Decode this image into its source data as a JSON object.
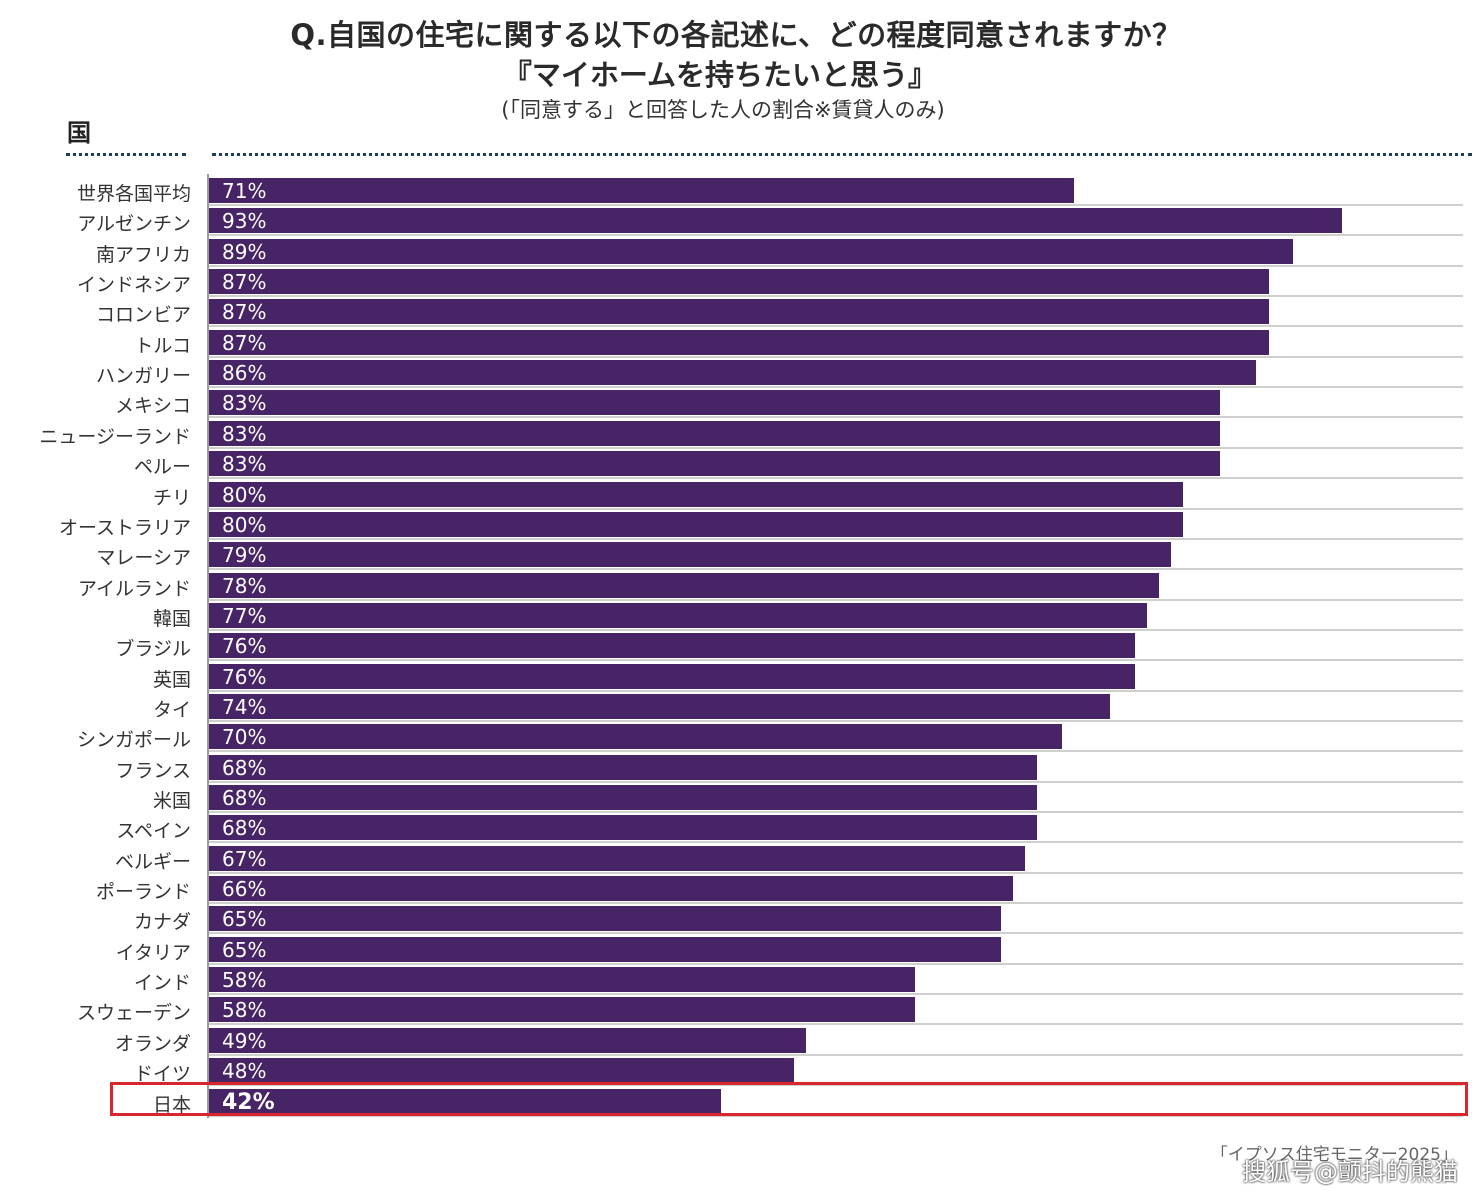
{
  "header": {
    "title_line1": "Q.自国の住宅に関する以下の各記述に、どの程度同意されますか？",
    "title_line2": "『マイホームを持ちたいと思う』",
    "subtitle": "(「同意する」と回答した人の割合※賃貸人のみ)",
    "column_header": "国"
  },
  "footer": {
    "source": "「イプソス住宅モニター2025」",
    "watermark": "搜狐号@颤抖的熊猫"
  },
  "colors": {
    "bar": "#462466",
    "highlight": "#d9262c",
    "dotted_rule": "#1e3d5c"
  },
  "chart_data": {
    "type": "bar",
    "orientation": "horizontal",
    "categories": [
      "世界各国平均",
      "アルゼンチン",
      "南アフリカ",
      "インドネシア",
      "コロンビア",
      "トルコ",
      "ハンガリー",
      "メキシコ",
      "ニュージーランド",
      "ペルー",
      "チリ",
      "オーストラリア",
      "マレーシア",
      "アイルランド",
      "韓国",
      "ブラジル",
      "英国",
      "タイ",
      "シンガポール",
      "フランス",
      "米国",
      "スペイン",
      "ベルギー",
      "ポーランド",
      "カナダ",
      "イタリア",
      "インド",
      "スウェーデン",
      "オランダ",
      "ドイツ",
      "日本"
    ],
    "values": [
      71,
      93,
      89,
      87,
      87,
      87,
      86,
      83,
      83,
      83,
      80,
      80,
      79,
      78,
      77,
      76,
      76,
      74,
      70,
      68,
      68,
      68,
      67,
      66,
      65,
      65,
      58,
      58,
      49,
      48,
      42
    ],
    "value_labels": [
      "71%",
      "93%",
      "89%",
      "87%",
      "87%",
      "87%",
      "86%",
      "83%",
      "83%",
      "83%",
      "80%",
      "80%",
      "79%",
      "78%",
      "77%",
      "76%",
      "76%",
      "74%",
      "70%",
      "68%",
      "68%",
      "68%",
      "67%",
      "66%",
      "65%",
      "65%",
      "58%",
      "58%",
      "49%",
      "48%",
      "42%"
    ],
    "unit": "%",
    "xlim": [
      0,
      100
    ],
    "highlighted_category": "日本",
    "grid": false,
    "legend": "none"
  }
}
